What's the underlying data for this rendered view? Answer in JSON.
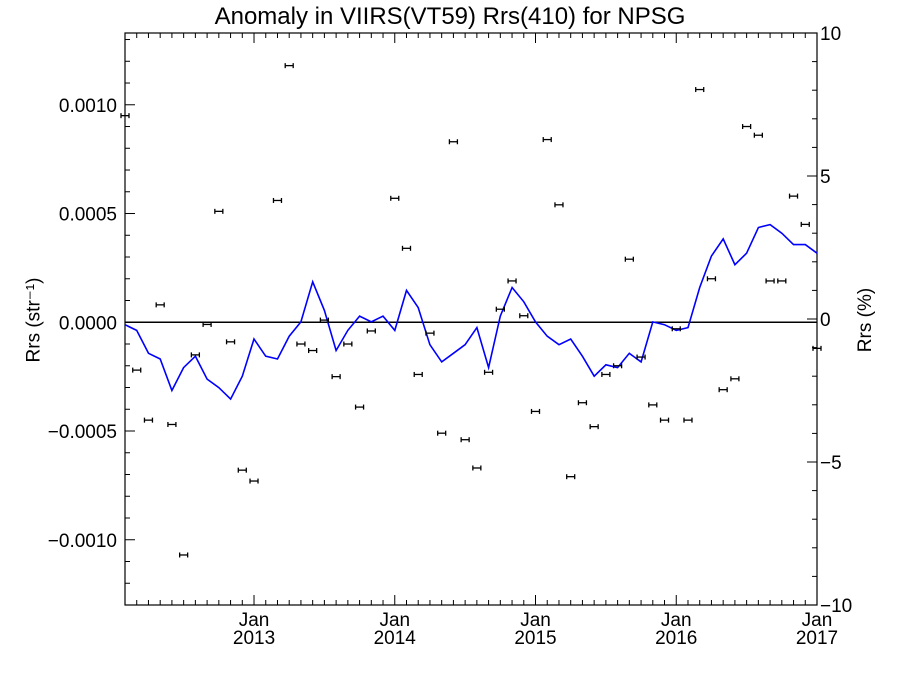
{
  "chart_data": {
    "type": "scatter",
    "title": "Anomaly in VIIRS(VT59) Rrs(410) for NPSG",
    "ylabel_left": "Rrs (str⁻¹)",
    "ylabel_right": "Rrs (%)",
    "xlim": [
      "2012-02",
      "2017-01"
    ],
    "ylim_left": [
      -0.0013,
      0.00133
    ],
    "ylim_right": [
      -10,
      10
    ],
    "grid": false,
    "x_ticks": [
      {
        "month": "Jan",
        "year": "2013",
        "x": "2013-01"
      },
      {
        "month": "Jan",
        "year": "2014",
        "x": "2014-01"
      },
      {
        "month": "Jan",
        "year": "2015",
        "x": "2015-01"
      },
      {
        "month": "Jan",
        "year": "2016",
        "x": "2016-01"
      },
      {
        "month": "Jan",
        "year": "2017",
        "x": "2017-01"
      }
    ],
    "y_ticks_left": [
      "0.0010",
      "0.0005",
      "0.0000",
      "−0.0005",
      "−0.0010"
    ],
    "y_ticks_left_values": [
      0.001,
      0.0005,
      0,
      -0.0005,
      -0.001
    ],
    "y_ticks_right": [
      "10",
      "5",
      "0",
      "−5",
      "−10"
    ],
    "y_ticks_right_values": [
      10,
      5,
      0,
      -5,
      -10
    ],
    "series": [
      {
        "axis": "left",
        "marker": "errorbar",
        "color": "#000000",
        "points": [
          {
            "x": "2012-02",
            "y": 0.00095
          },
          {
            "x": "2012-03",
            "y": -0.00022
          },
          {
            "x": "2012-04",
            "y": -0.00045
          },
          {
            "x": "2012-05",
            "y": 8e-05
          },
          {
            "x": "2012-06",
            "y": -0.00047
          },
          {
            "x": "2012-07",
            "y": -0.00107
          },
          {
            "x": "2012-08",
            "y": -0.00015
          },
          {
            "x": "2012-09",
            "y": -1e-05
          },
          {
            "x": "2012-10",
            "y": 0.00051
          },
          {
            "x": "2012-11",
            "y": -9e-05
          },
          {
            "x": "2012-12",
            "y": -0.00068
          },
          {
            "x": "2013-01",
            "y": -0.00073
          },
          {
            "x": "2013-03",
            "y": 0.00056
          },
          {
            "x": "2013-04",
            "y": 0.00118
          },
          {
            "x": "2013-05",
            "y": -0.0001
          },
          {
            "x": "2013-06",
            "y": -0.00013
          },
          {
            "x": "2013-07",
            "y": 1e-05
          },
          {
            "x": "2013-08",
            "y": -0.00025
          },
          {
            "x": "2013-09",
            "y": -0.0001
          },
          {
            "x": "2013-10",
            "y": -0.00039
          },
          {
            "x": "2013-11",
            "y": -4e-05
          },
          {
            "x": "2014-01",
            "y": 0.00057
          },
          {
            "x": "2014-02",
            "y": 0.00034
          },
          {
            "x": "2014-03",
            "y": -0.00024
          },
          {
            "x": "2014-04",
            "y": -5e-05
          },
          {
            "x": "2014-05",
            "y": -0.00051
          },
          {
            "x": "2014-06",
            "y": 0.00083
          },
          {
            "x": "2014-07",
            "y": -0.00054
          },
          {
            "x": "2014-08",
            "y": -0.00067
          },
          {
            "x": "2014-09",
            "y": -0.00023
          },
          {
            "x": "2014-10",
            "y": 6e-05
          },
          {
            "x": "2014-11",
            "y": 0.00019
          },
          {
            "x": "2014-12",
            "y": 3e-05
          },
          {
            "x": "2015-01",
            "y": -0.00041
          },
          {
            "x": "2015-02",
            "y": 0.00084
          },
          {
            "x": "2015-03",
            "y": 0.00054
          },
          {
            "x": "2015-04",
            "y": -0.00071
          },
          {
            "x": "2015-05",
            "y": -0.00037
          },
          {
            "x": "2015-06",
            "y": -0.00048
          },
          {
            "x": "2015-07",
            "y": -0.00024
          },
          {
            "x": "2015-08",
            "y": -0.0002
          },
          {
            "x": "2015-09",
            "y": 0.00029
          },
          {
            "x": "2015-10",
            "y": -0.00016
          },
          {
            "x": "2015-11",
            "y": -0.00038
          },
          {
            "x": "2015-12",
            "y": -0.00045
          },
          {
            "x": "2016-01",
            "y": -3e-05
          },
          {
            "x": "2016-02",
            "y": -0.00045
          },
          {
            "x": "2016-03",
            "y": 0.00107
          },
          {
            "x": "2016-04",
            "y": 0.0002
          },
          {
            "x": "2016-05",
            "y": -0.00031
          },
          {
            "x": "2016-06",
            "y": -0.00026
          },
          {
            "x": "2016-07",
            "y": 0.0009
          },
          {
            "x": "2016-08",
            "y": 0.00086
          },
          {
            "x": "2016-09",
            "y": 0.00019
          },
          {
            "x": "2016-10",
            "y": 0.00019
          },
          {
            "x": "2016-11",
            "y": 0.00058
          },
          {
            "x": "2016-12",
            "y": 0.00045
          },
          {
            "x": "2017-01",
            "y": -0.00012
          }
        ]
      },
      {
        "axis": "right",
        "marker": "line",
        "color": "#0000ff",
        "points": [
          {
            "x": "2012-02",
            "y": -0.2
          },
          {
            "x": "2012-03",
            "y": -0.4
          },
          {
            "x": "2012-04",
            "y": -1.2
          },
          {
            "x": "2012-05",
            "y": -1.4
          },
          {
            "x": "2012-06",
            "y": -2.5
          },
          {
            "x": "2012-07",
            "y": -1.7
          },
          {
            "x": "2012-08",
            "y": -1.3
          },
          {
            "x": "2012-09",
            "y": -2.1
          },
          {
            "x": "2012-10",
            "y": -2.4
          },
          {
            "x": "2012-11",
            "y": -2.8
          },
          {
            "x": "2012-12",
            "y": -2.0
          },
          {
            "x": "2013-01",
            "y": -0.7
          },
          {
            "x": "2013-02",
            "y": -1.3
          },
          {
            "x": "2013-03",
            "y": -1.4
          },
          {
            "x": "2013-04",
            "y": -0.6
          },
          {
            "x": "2013-05",
            "y": -0.1
          },
          {
            "x": "2013-06",
            "y": 1.3
          },
          {
            "x": "2013-07",
            "y": 0.3
          },
          {
            "x": "2013-08",
            "y": -1.1
          },
          {
            "x": "2013-09",
            "y": -0.4
          },
          {
            "x": "2013-10",
            "y": 0.1
          },
          {
            "x": "2013-11",
            "y": -0.1
          },
          {
            "x": "2013-12",
            "y": 0.1
          },
          {
            "x": "2014-01",
            "y": -0.4
          },
          {
            "x": "2014-02",
            "y": 1.0
          },
          {
            "x": "2014-03",
            "y": 0.4
          },
          {
            "x": "2014-04",
            "y": -0.9
          },
          {
            "x": "2014-05",
            "y": -1.5
          },
          {
            "x": "2014-06",
            "y": -1.2
          },
          {
            "x": "2014-07",
            "y": -0.9
          },
          {
            "x": "2014-08",
            "y": -0.3
          },
          {
            "x": "2014-09",
            "y": -1.7
          },
          {
            "x": "2014-10",
            "y": 0.1
          },
          {
            "x": "2014-11",
            "y": 1.1
          },
          {
            "x": "2014-12",
            "y": 0.6
          },
          {
            "x": "2015-01",
            "y": -0.1
          },
          {
            "x": "2015-02",
            "y": -0.6
          },
          {
            "x": "2015-03",
            "y": -0.9
          },
          {
            "x": "2015-04",
            "y": -0.7
          },
          {
            "x": "2015-05",
            "y": -1.3
          },
          {
            "x": "2015-06",
            "y": -2.0
          },
          {
            "x": "2015-07",
            "y": -1.6
          },
          {
            "x": "2015-08",
            "y": -1.7
          },
          {
            "x": "2015-09",
            "y": -1.2
          },
          {
            "x": "2015-10",
            "y": -1.5
          },
          {
            "x": "2015-11",
            "y": -0.1
          },
          {
            "x": "2015-12",
            "y": -0.2
          },
          {
            "x": "2016-01",
            "y": -0.4
          },
          {
            "x": "2016-02",
            "y": -0.3
          },
          {
            "x": "2016-03",
            "y": 1.1
          },
          {
            "x": "2016-04",
            "y": 2.2
          },
          {
            "x": "2016-05",
            "y": 2.8
          },
          {
            "x": "2016-06",
            "y": 1.9
          },
          {
            "x": "2016-07",
            "y": 2.3
          },
          {
            "x": "2016-08",
            "y": 3.2
          },
          {
            "x": "2016-09",
            "y": 3.3
          },
          {
            "x": "2016-10",
            "y": 3.0
          },
          {
            "x": "2016-11",
            "y": 2.6
          },
          {
            "x": "2016-12",
            "y": 2.6
          },
          {
            "x": "2017-01",
            "y": 2.3
          }
        ]
      }
    ]
  }
}
